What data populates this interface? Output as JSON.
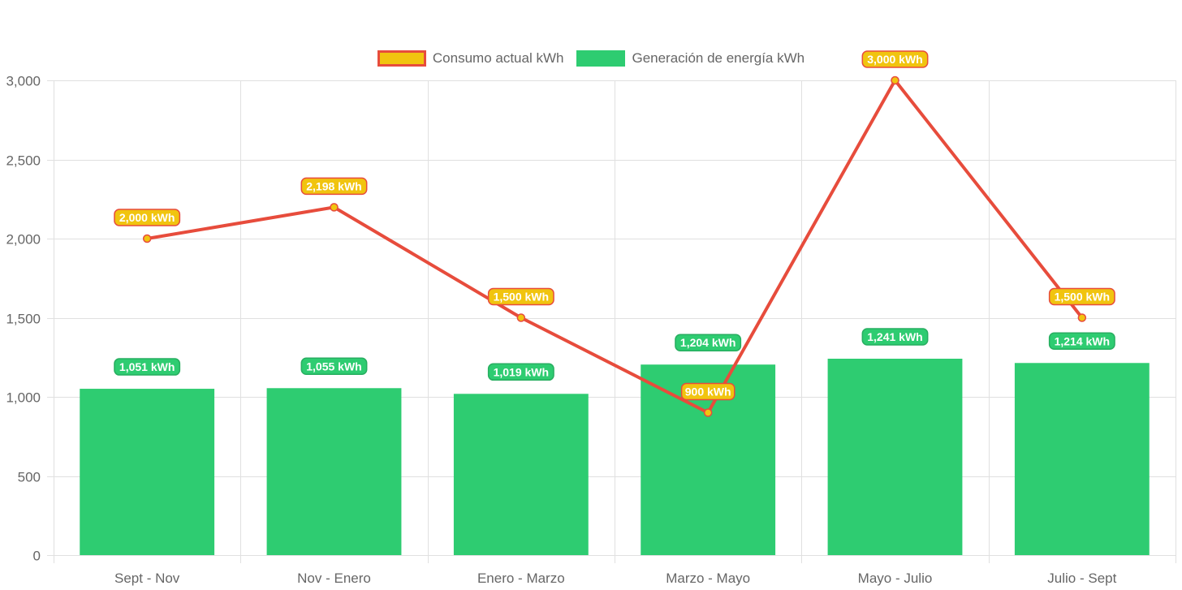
{
  "chart_data": {
    "type": "bar",
    "categories": [
      "Sept - Nov",
      "Nov - Enero",
      "Enero - Marzo",
      "Marzo - Mayo",
      "Mayo - Julio",
      "Julio - Sept"
    ],
    "series": [
      {
        "name": "Consumo actual kWh",
        "type": "line",
        "values": [
          2000,
          2198,
          1500,
          900,
          3000,
          1500
        ],
        "labels": [
          "2,000 kWh",
          "2,198 kWh",
          "1,500 kWh",
          "900 kWh",
          "3,000 kWh",
          "1,500 kWh"
        ],
        "color": "#e74c3c",
        "fill_color": "#f1c40f"
      },
      {
        "name": "Generación de energía kWh",
        "type": "bar",
        "values": [
          1051,
          1055,
          1019,
          1204,
          1241,
          1214
        ],
        "labels": [
          "1,051 kWh",
          "1,055 kWh",
          "1,019 kWh",
          "1,204 kWh",
          "1,241 kWh",
          "1,214 kWh"
        ],
        "color": "#2ecc71"
      }
    ],
    "ylim": [
      0,
      3000
    ],
    "y_ticks": [
      0,
      500,
      1000,
      1500,
      2000,
      2500,
      3000
    ],
    "y_tick_labels": [
      "0",
      "500",
      "1,000",
      "1,500",
      "2,000",
      "2,500",
      "3,000"
    ],
    "grid": true,
    "legend_position": "top-center",
    "title": "",
    "xlabel": "",
    "ylabel": ""
  },
  "colors": {
    "grid": "#e0e0e0",
    "axis_text": "#666666",
    "label_text": "#ffffff"
  }
}
